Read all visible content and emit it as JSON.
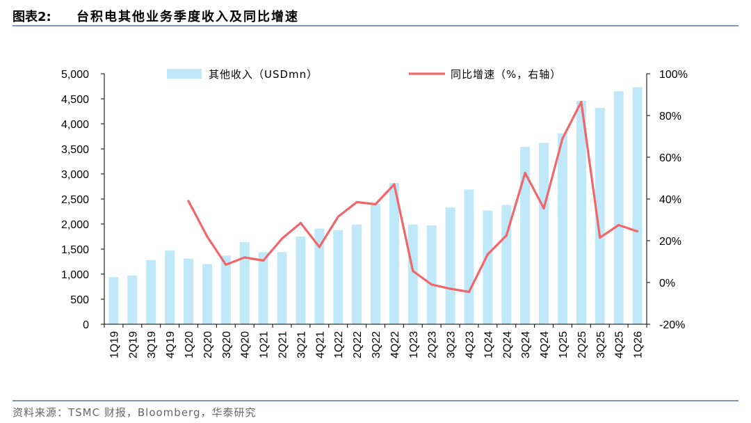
{
  "header": {
    "figure_number": "图表2:",
    "title": "台积电其他业务季度收入及同比增速"
  },
  "footer": {
    "source": "资料来源：TSMC 财报，Bloomberg，华泰研究"
  },
  "colors": {
    "bar": "#bfe9f9",
    "line": "#f0666a",
    "rule": "#7f97b4",
    "axis": "#000000"
  },
  "chart_data": {
    "type": "bar+line",
    "categories": [
      "1Q19",
      "2Q19",
      "3Q19",
      "4Q19",
      "1Q20",
      "2Q20",
      "3Q20",
      "4Q20",
      "1Q21",
      "2Q21",
      "3Q21",
      "4Q21",
      "1Q22",
      "2Q22",
      "3Q22",
      "4Q22",
      "1Q23",
      "2Q23",
      "3Q23",
      "4Q23",
      "1Q24",
      "2Q24",
      "3Q24",
      "4Q24",
      "1Q25",
      "2Q25",
      "3Q25",
      "4Q25",
      "1Q26"
    ],
    "series": [
      {
        "name": "其他收入（USDmn）",
        "type": "bar",
        "axis": "left",
        "values": [
          940,
          970,
          1280,
          1470,
          1310,
          1200,
          1370,
          1640,
          1440,
          1440,
          1750,
          1910,
          1880,
          1990,
          2400,
          2820,
          1990,
          1970,
          2330,
          2690,
          2270,
          2380,
          3540,
          3620,
          3810,
          4460,
          4320,
          4650,
          4730
        ]
      },
      {
        "name": "同比增速（%，右轴）",
        "type": "line",
        "axis": "right",
        "start_index": 4,
        "values": [
          null,
          null,
          null,
          null,
          39,
          22,
          8.5,
          12,
          10.5,
          21,
          28.5,
          17,
          31.5,
          38.5,
          37.5,
          47,
          5.5,
          -1,
          -3,
          -4.5,
          13.5,
          22.5,
          52.5,
          35.5,
          69,
          86.5,
          21.5,
          27.5,
          24.5
        ]
      }
    ],
    "left_axis": {
      "min": 0,
      "max": 5000,
      "step": 500,
      "tick_labels": [
        "0",
        "500",
        "1,000",
        "1,500",
        "2,000",
        "2,500",
        "3,000",
        "3,500",
        "4,000",
        "4,500",
        "5,000"
      ]
    },
    "right_axis": {
      "min": -20,
      "max": 100,
      "step": 20,
      "tick_labels": [
        "-20%",
        "0%",
        "20%",
        "40%",
        "60%",
        "80%",
        "100%"
      ]
    },
    "legend_position": "top",
    "grid": false
  }
}
